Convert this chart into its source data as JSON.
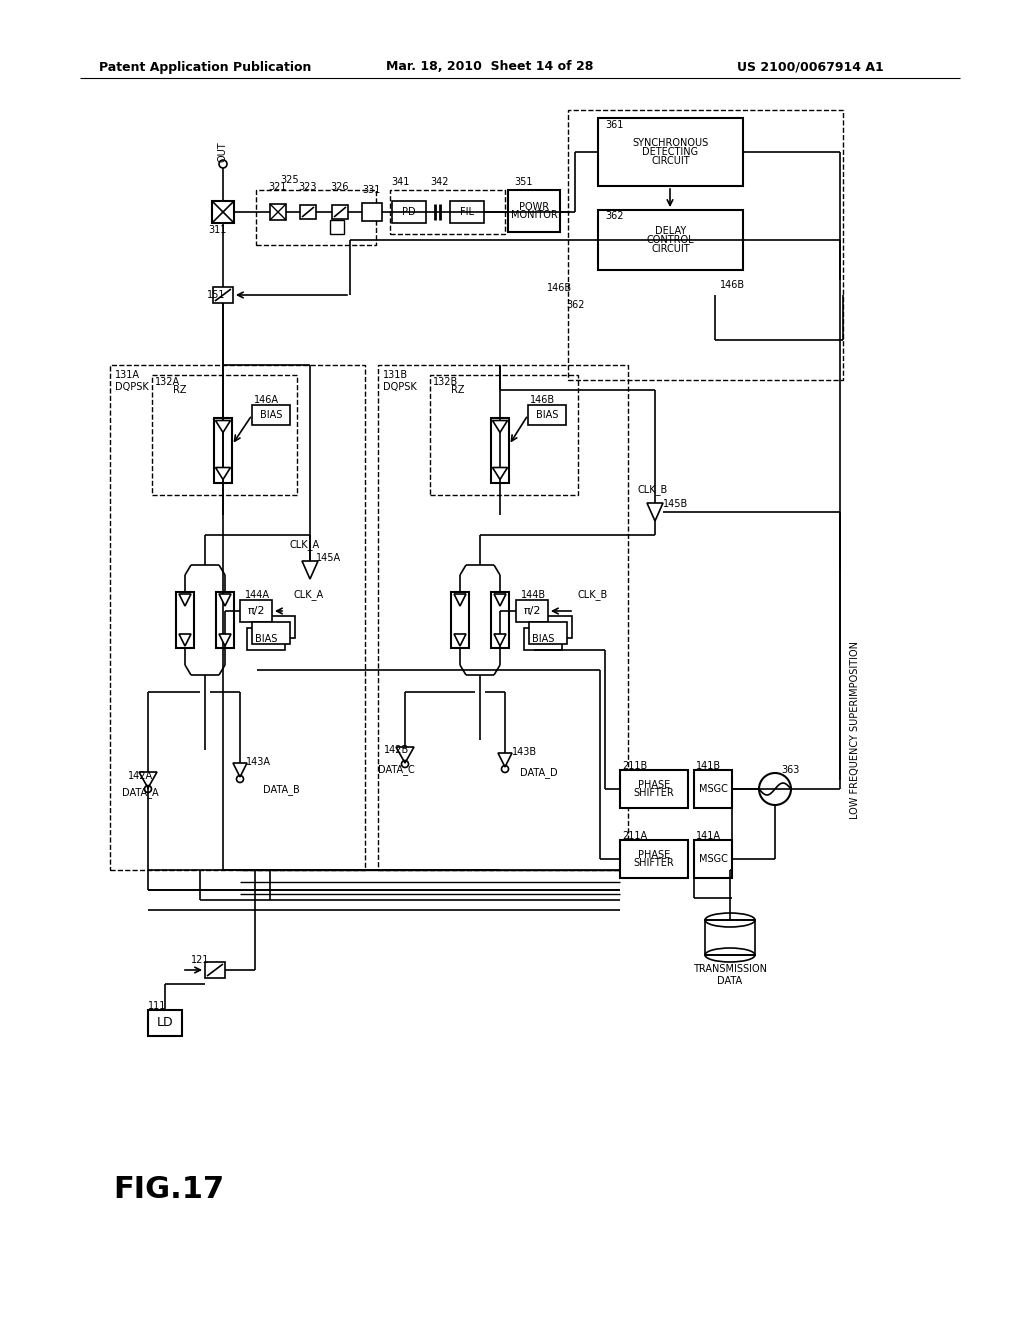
{
  "header_left": "Patent Application Publication",
  "header_mid": "Mar. 18, 2010  Sheet 14 of 28",
  "header_right": "US 2100/0067914 A1",
  "fig_label": "FIG.17"
}
